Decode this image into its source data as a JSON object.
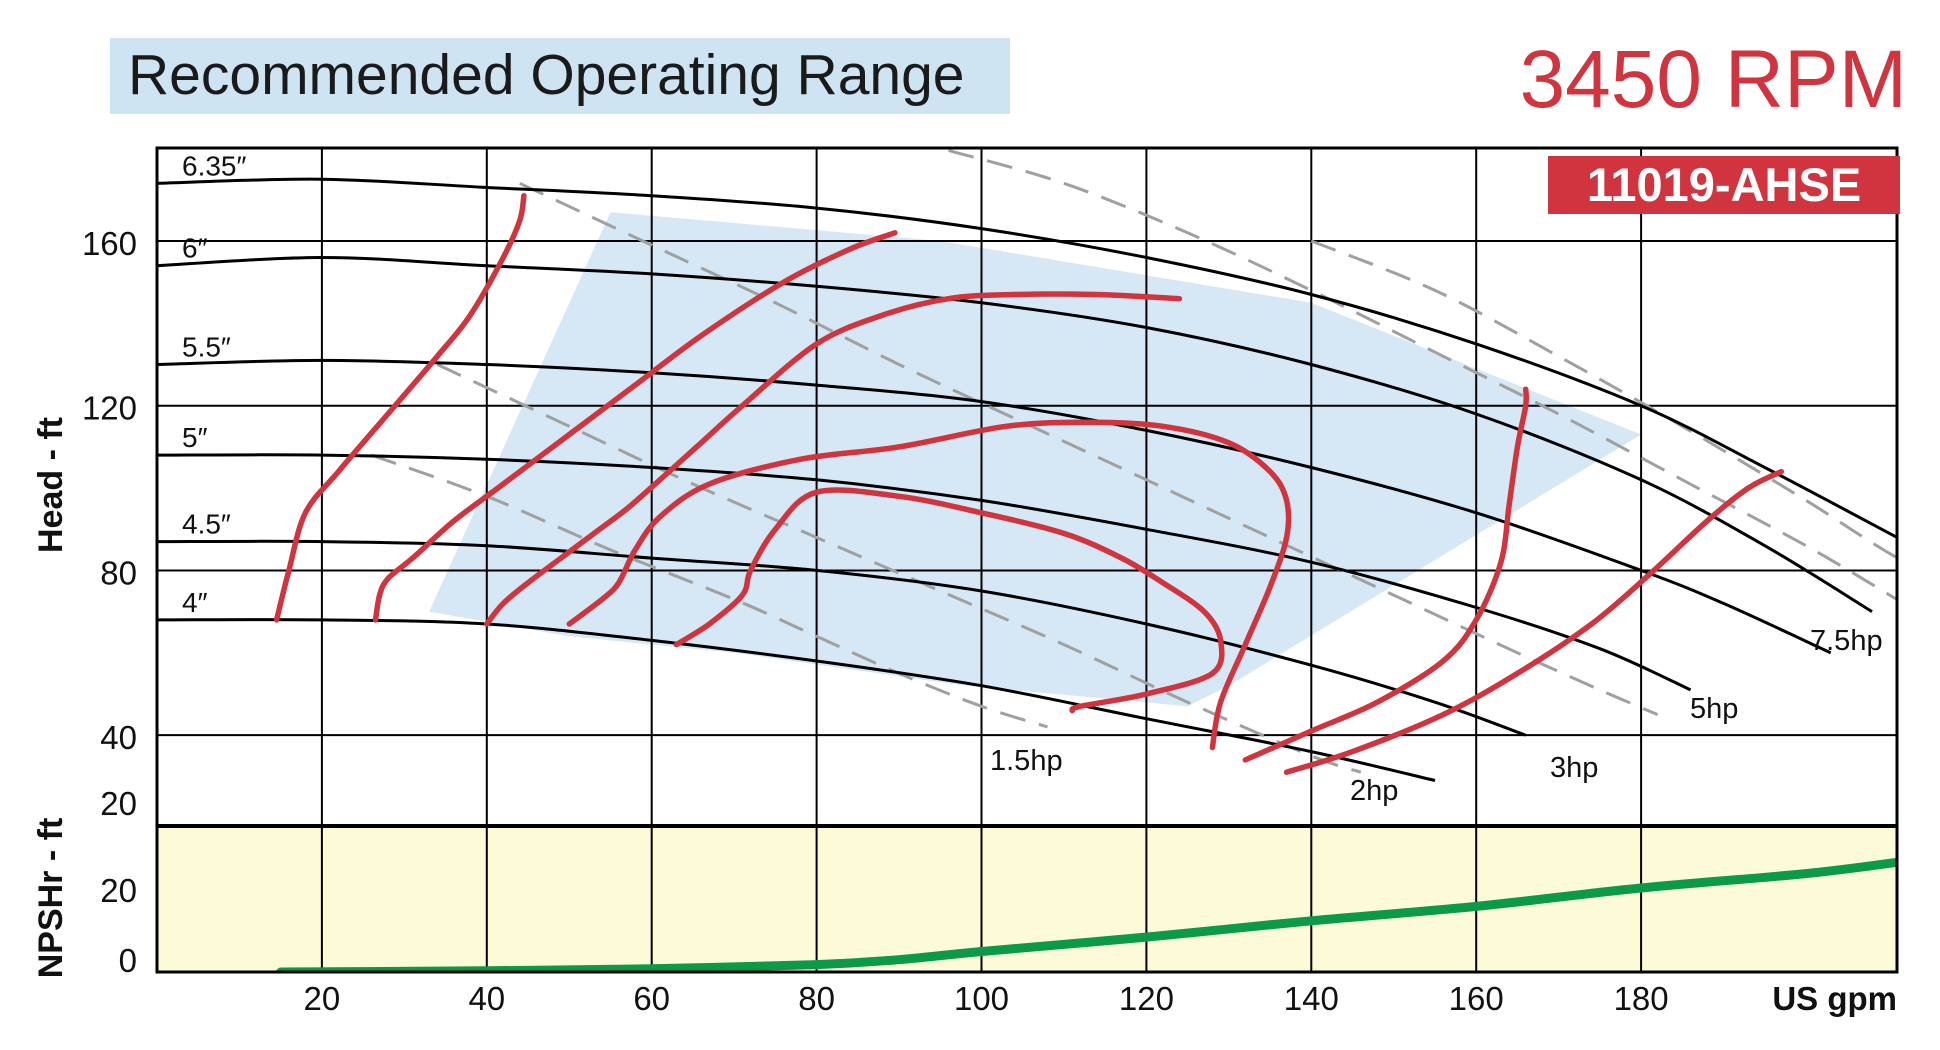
{
  "header": {
    "title": "Recommended Operating Range",
    "rpm": "3450 RPM",
    "model": "11019-AHSE"
  },
  "colors": {
    "impeller_curve": "#000000",
    "power_curve": "#d0343f",
    "hp_line": "#a0a0a0",
    "range_fill": "#d6e8f5",
    "npsh_fill": "#fdfad8",
    "npsh_curve": "#0c9a48",
    "accent": "#d0343f"
  },
  "chart_data": {
    "type": "line",
    "xlabel": "US gpm",
    "xlim": [
      0,
      190
    ],
    "x_ticks": [
      20,
      40,
      60,
      80,
      100,
      120,
      140,
      160,
      180
    ],
    "head_panel": {
      "ylabel": "Head - ft",
      "ylim": [
        20,
        182
      ],
      "y_ticks": [
        20,
        40,
        80,
        120,
        160
      ],
      "grid": true,
      "impeller_curves": [
        {
          "label": "6.35″",
          "points": [
            [
              0,
              174
            ],
            [
              20,
              175
            ],
            [
              40,
              173
            ],
            [
              60,
              171
            ],
            [
              80,
              168
            ],
            [
              100,
              163
            ],
            [
              120,
              156
            ],
            [
              140,
              147
            ],
            [
              160,
              135
            ],
            [
              180,
              120
            ],
            [
              195,
              105
            ],
            [
              212,
              87
            ]
          ]
        },
        {
          "label": "6″",
          "points": [
            [
              0,
              154
            ],
            [
              20,
              156
            ],
            [
              40,
              154
            ],
            [
              60,
              152
            ],
            [
              80,
              149
            ],
            [
              100,
              145
            ],
            [
              120,
              139
            ],
            [
              140,
              130
            ],
            [
              160,
              118
            ],
            [
              180,
              102
            ],
            [
              195,
              86
            ],
            [
              208,
              70
            ]
          ]
        },
        {
          "label": "5.5″",
          "points": [
            [
              0,
              130
            ],
            [
              20,
              131
            ],
            [
              40,
              130
            ],
            [
              60,
              128
            ],
            [
              80,
              125
            ],
            [
              100,
              121
            ],
            [
              120,
              114
            ],
            [
              140,
              105
            ],
            [
              160,
              94
            ],
            [
              180,
              80
            ],
            [
              190,
              72
            ],
            [
              203,
              60
            ]
          ]
        },
        {
          "label": "5″",
          "points": [
            [
              0,
              108
            ],
            [
              20,
              108
            ],
            [
              40,
              107
            ],
            [
              60,
              105
            ],
            [
              80,
              102
            ],
            [
              100,
              97
            ],
            [
              120,
              90
            ],
            [
              140,
              82
            ],
            [
              160,
              71
            ],
            [
              175,
              61
            ],
            [
              186,
              51
            ]
          ]
        },
        {
          "label": "4.5″",
          "points": [
            [
              0,
              87
            ],
            [
              20,
              87
            ],
            [
              40,
              86
            ],
            [
              60,
              83
            ],
            [
              80,
              80
            ],
            [
              100,
              75
            ],
            [
              120,
              67
            ],
            [
              140,
              57
            ],
            [
              155,
              48
            ],
            [
              166,
              40
            ]
          ]
        },
        {
          "label": "4″",
          "points": [
            [
              0,
              68
            ],
            [
              20,
              68
            ],
            [
              40,
              67
            ],
            [
              60,
              63
            ],
            [
              80,
              58
            ],
            [
              100,
              52
            ],
            [
              120,
              44
            ],
            [
              140,
              36
            ],
            [
              155,
              29
            ]
          ]
        }
      ],
      "efficiency_contours": [
        {
          "points": [
            [
              14.5,
              68
            ],
            [
              16,
              80
            ],
            [
              18,
              94
            ],
            [
              22,
              104
            ],
            [
              28,
              118
            ],
            [
              34,
              132
            ],
            [
              38,
              142
            ],
            [
              42,
              156
            ],
            [
              44,
              165
            ],
            [
              44.5,
              171
            ]
          ]
        },
        {
          "points": [
            [
              26.5,
              68
            ],
            [
              27,
              74
            ],
            [
              28,
              78
            ],
            [
              31,
              83
            ],
            [
              36,
              92
            ],
            [
              42,
              101
            ],
            [
              50,
              113
            ],
            [
              58,
              125
            ],
            [
              66,
              137
            ],
            [
              76,
              150
            ],
            [
              84,
              158
            ],
            [
              89.5,
              162
            ]
          ]
        },
        {
          "points": [
            [
              40,
              67
            ],
            [
              42,
              72
            ],
            [
              45,
              77
            ],
            [
              49,
              83
            ],
            [
              53,
              89
            ],
            [
              57,
              95
            ],
            [
              61,
              102
            ],
            [
              66,
              111
            ],
            [
              71,
              120
            ],
            [
              80,
              135
            ],
            [
              88,
              142
            ],
            [
              96,
              146
            ],
            [
              104,
              147
            ],
            [
              114,
              147
            ],
            [
              124,
              146
            ]
          ]
        },
        {
          "points": [
            [
              50,
              67
            ],
            [
              54,
              73
            ],
            [
              56,
              77
            ],
            [
              58,
              85
            ],
            [
              61,
              93
            ],
            [
              67,
              101
            ],
            [
              78,
              107
            ],
            [
              90,
              110
            ],
            [
              103,
              115
            ],
            [
              113,
              116
            ],
            [
              122,
              115
            ],
            [
              130,
              111
            ],
            [
              135,
              104
            ],
            [
              137,
              97
            ],
            [
              137,
              88
            ],
            [
              135,
              76
            ],
            [
              132,
              62
            ],
            [
              129,
              48
            ],
            [
              128,
              37
            ]
          ]
        },
        {
          "points": [
            [
              63,
              62
            ],
            [
              67,
              67
            ],
            [
              71,
              74
            ],
            [
              72,
              80
            ],
            [
              75,
              90
            ],
            [
              80,
              99
            ],
            [
              90,
              98
            ],
            [
              100,
              94
            ],
            [
              110,
              89
            ],
            [
              117,
              83
            ],
            [
              122,
              77
            ],
            [
              127,
              70
            ],
            [
              129,
              63
            ],
            [
              128,
              55
            ],
            [
              120,
              50
            ],
            [
              112,
              47
            ],
            [
              111,
              46
            ]
          ]
        },
        {
          "points": [
            [
              132,
              34
            ],
            [
              140,
              41
            ],
            [
              148,
              48
            ],
            [
              156,
              58
            ],
            [
              160,
              68
            ],
            [
              163,
              82
            ],
            [
              164,
              96
            ],
            [
              165,
              110
            ],
            [
              166,
              120
            ],
            [
              166,
              124
            ]
          ]
        },
        {
          "points": [
            [
              137,
              31
            ],
            [
              145,
              36
            ],
            [
              156,
              45
            ],
            [
              165,
              55
            ],
            [
              174,
              67
            ],
            [
              181,
              79
            ],
            [
              188,
              92
            ],
            [
              193,
              100
            ],
            [
              197,
              104
            ]
          ]
        }
      ],
      "hp_lines": [
        {
          "label": "1.5hp",
          "points": [
            [
              26,
              108
            ],
            [
              40,
              98
            ],
            [
              55,
              85
            ],
            [
              70,
              73
            ],
            [
              80,
              64
            ],
            [
              90,
              55
            ],
            [
              100,
              47
            ],
            [
              108,
              42
            ]
          ]
        },
        {
          "label": "2hp",
          "points": [
            [
              34,
              130
            ],
            [
              50,
              115
            ],
            [
              65,
              101
            ],
            [
              80,
              88
            ],
            [
              95,
              75
            ],
            [
              110,
              62
            ],
            [
              125,
              48
            ],
            [
              140,
              35
            ],
            [
              146,
              31
            ]
          ]
        },
        {
          "label": "3hp",
          "points": [
            [
              44,
              174
            ],
            [
              60,
              159
            ],
            [
              75,
              145
            ],
            [
              90,
              130
            ],
            [
              105,
              116
            ],
            [
              120,
              102
            ],
            [
              135,
              88
            ],
            [
              150,
              74
            ],
            [
              165,
              60
            ],
            [
              175,
              51
            ],
            [
              182,
              45
            ]
          ]
        },
        {
          "label": "5hp",
          "points": [
            [
              96,
              182
            ],
            [
              110,
              174
            ],
            [
              125,
              162
            ],
            [
              140,
              148
            ],
            [
              155,
              133
            ],
            [
              170,
              118
            ],
            [
              185,
              102
            ],
            [
              200,
              86
            ],
            [
              211,
              73
            ]
          ]
        },
        {
          "label": "7.5hp",
          "points": [
            [
              140,
              160
            ],
            [
              155,
              148
            ],
            [
              170,
              132
            ],
            [
              185,
              115
            ],
            [
              200,
              97
            ],
            [
              212,
              82
            ],
            [
              228,
              66
            ]
          ]
        }
      ],
      "recommended_range": [
        [
          33,
          70
        ],
        [
          55,
          167
        ],
        [
          95,
          160
        ],
        [
          140,
          145
        ],
        [
          180,
          113
        ],
        [
          180,
          113
        ],
        [
          130,
          52
        ],
        [
          125,
          47
        ],
        [
          98,
          52
        ],
        [
          70,
          60
        ],
        [
          50,
          64
        ]
      ]
    },
    "npsh_panel": {
      "ylabel": "NPSHr - ft",
      "ylim": [
        0,
        35
      ],
      "y_ticks": [
        0,
        20
      ],
      "npsh_curve": [
        [
          15,
          0
        ],
        [
          40,
          0.3
        ],
        [
          60,
          0.8
        ],
        [
          80,
          1.8
        ],
        [
          90,
          3
        ],
        [
          100,
          5
        ],
        [
          120,
          8.5
        ],
        [
          140,
          12.5
        ],
        [
          160,
          16
        ],
        [
          180,
          20.5
        ],
        [
          200,
          24
        ],
        [
          212,
          27
        ]
      ]
    }
  }
}
